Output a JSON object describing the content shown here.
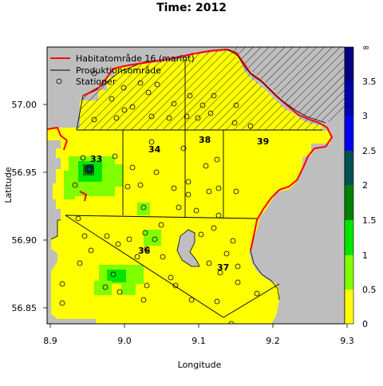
{
  "title": "Time: 2012",
  "axes": {
    "xlabel": "Longitude",
    "ylabel": "Latitude",
    "xticks": [
      "8.9",
      "9.0",
      "9.1",
      "9.2",
      "9.3"
    ],
    "yticks": [
      "56.85",
      "56.90",
      "56.95",
      "57.00"
    ]
  },
  "legend": {
    "placement": "top-left",
    "items": [
      {
        "label": "Habitatområde 16 (marint)",
        "symbol": "red-line"
      },
      {
        "label": "Produktionsområde",
        "symbol": "black-line"
      },
      {
        "label": "Stationer",
        "symbol": "circle"
      }
    ]
  },
  "colorbar": {
    "labels": [
      "0",
      "0.5",
      "1",
      "1.5",
      "2",
      "2.5",
      "3",
      "3.5",
      "∞"
    ],
    "colors": [
      "#ffff00",
      "#7fff00",
      "#00e600",
      "#008000",
      "#005050",
      "#0000ee",
      "#0000aa",
      "#000080"
    ]
  },
  "zones": [
    {
      "id": "33"
    },
    {
      "id": "34"
    },
    {
      "id": "38"
    },
    {
      "id": "39"
    },
    {
      "id": "36"
    },
    {
      "id": "37"
    }
  ],
  "colors": {
    "land": "#bebebe",
    "low": "#ffff00",
    "medium": "#7fff00",
    "high": "#00e600",
    "higher": "#008000",
    "peak": "#005050",
    "habitat": "#ff0000"
  }
}
